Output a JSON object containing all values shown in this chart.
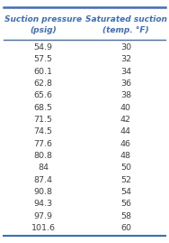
{
  "col1_header_line1": "Suction pressure",
  "col1_header_line2": "(psig)",
  "col2_header_line1": "Saturated suction",
  "col2_header_line2": "(temp. °F)",
  "col1_values": [
    "54.9",
    "57.5",
    "60.1",
    "62.8",
    "65.6",
    "68.5",
    "71.5",
    "74.5",
    "77.6",
    "80.8",
    "84",
    "87.4",
    "90.8",
    "94.3",
    "97.9",
    "101.6"
  ],
  "col2_values": [
    "30",
    "32",
    "34",
    "36",
    "38",
    "40",
    "42",
    "44",
    "46",
    "48",
    "50",
    "52",
    "54",
    "56",
    "58",
    "60"
  ],
  "header_color": "#3B6EC2",
  "text_color": "#404040",
  "line_color": "#3B6EC2",
  "background_color": "#FFFFFF",
  "header_fontsize": 6.5,
  "data_fontsize": 6.8
}
